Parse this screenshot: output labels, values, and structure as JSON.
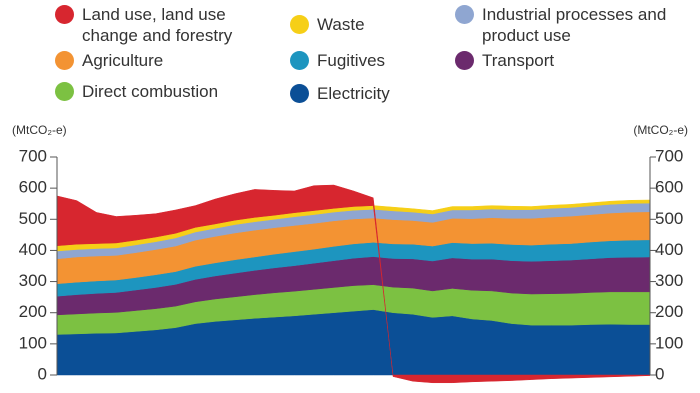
{
  "chart_data": {
    "type": "stacked-area",
    "categories": [
      null,
      null,
      null,
      null,
      null,
      null,
      null,
      null,
      null,
      null,
      null,
      null,
      null,
      null,
      null,
      null,
      null,
      null,
      null,
      null,
      null,
      null,
      null,
      null,
      null,
      null,
      null,
      null,
      null,
      null,
      null
    ],
    "y_label": "(MtCO₂-e)",
    "y2_label": "(MtCO₂-e)",
    "ylim": [
      0,
      700
    ],
    "yticks": [
      0,
      100,
      200,
      300,
      400,
      500,
      600,
      700
    ],
    "y2lim": [
      0,
      700
    ],
    "y2ticks": [
      0,
      100,
      200,
      300,
      400,
      500,
      600,
      700
    ],
    "series": [
      {
        "name": "Electricity",
        "color": "#0b4f96",
        "values": [
          130,
          132,
          134,
          135,
          140,
          145,
          152,
          165,
          172,
          177,
          182,
          186,
          190,
          195,
          200,
          205,
          210,
          200,
          195,
          185,
          190,
          180,
          175,
          165,
          160,
          160,
          160,
          162,
          163,
          162,
          162
        ]
      },
      {
        "name": "Direct combustion",
        "color": "#7cc142",
        "values": [
          63,
          64,
          65,
          66,
          67,
          68,
          69,
          70,
          72,
          74,
          76,
          78,
          79,
          80,
          81,
          82,
          80,
          82,
          84,
          85,
          88,
          92,
          95,
          98,
          100,
          101,
          102,
          103,
          104,
          105,
          105
        ]
      },
      {
        "name": "Transport",
        "color": "#6b2a6d",
        "values": [
          60,
          62,
          63,
          64,
          66,
          68,
          70,
          72,
          74,
          76,
          78,
          80,
          82,
          84,
          86,
          88,
          90,
          92,
          94,
          96,
          98,
          100,
          102,
          104,
          105,
          106,
          107,
          108,
          110,
          111,
          112
        ]
      },
      {
        "name": "Fugitives",
        "color": "#1d95bf",
        "values": [
          40,
          40,
          40,
          40,
          40,
          41,
          41,
          42,
          42,
          43,
          43,
          44,
          45,
          45,
          46,
          46,
          46,
          47,
          47,
          48,
          49,
          50,
          51,
          52,
          52,
          53,
          53,
          54,
          54,
          55,
          55
        ]
      },
      {
        "name": "Agriculture",
        "color": "#f39333",
        "values": [
          80,
          81,
          80,
          79,
          80,
          81,
          82,
          84,
          85,
          86,
          86,
          85,
          84,
          83,
          82,
          80,
          78,
          78,
          76,
          76,
          78,
          80,
          82,
          84,
          86,
          87,
          88,
          88,
          89,
          90,
          90
        ]
      },
      {
        "name": "Industrial processes and product use",
        "color": "#8fa6d1",
        "values": [
          25,
          24,
          24,
          24,
          25,
          25,
          26,
          26,
          26,
          27,
          27,
          27,
          28,
          28,
          28,
          28,
          28,
          28,
          27,
          27,
          27,
          28,
          28,
          28,
          28,
          28,
          28,
          28,
          28,
          28,
          28
        ]
      },
      {
        "name": "Waste",
        "color": "#f6cf17",
        "values": [
          17,
          17,
          16,
          16,
          15,
          15,
          15,
          15,
          14,
          14,
          14,
          13,
          13,
          13,
          12,
          12,
          12,
          12,
          11,
          11,
          11,
          11,
          11,
          11,
          10,
          10,
          10,
          10,
          10,
          10,
          10
        ]
      },
      {
        "name": "Land use, land use change and forestry",
        "color": "#d7262f",
        "values": [
          160,
          140,
          100,
          85,
          80,
          75,
          75,
          70,
          80,
          85,
          90,
          80,
          70,
          80,
          75,
          50,
          25,
          -5,
          -20,
          -25,
          -25,
          -22,
          -20,
          -18,
          -15,
          -12,
          -10,
          -8,
          -6,
          -4,
          -2
        ]
      }
    ]
  }
}
